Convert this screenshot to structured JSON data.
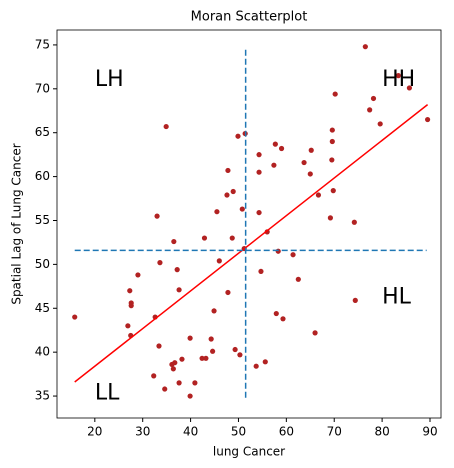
{
  "chart_data": {
    "type": "scatter",
    "title": "Moran Scatterplot",
    "x_label": "lung Cancer",
    "y_label": "Spatial Lag of Lung Cancer",
    "xlim": [
      12.1,
      92.3
    ],
    "ylim": [
      32.5,
      76.7
    ],
    "xticks": [
      20,
      30,
      40,
      50,
      60,
      70,
      80,
      90
    ],
    "yticks": [
      35,
      40,
      45,
      50,
      55,
      60,
      65,
      70,
      75
    ],
    "series": [
      {
        "style": "points",
        "color": "#b22222",
        "x": [
          15.8,
          34.9,
          76.5,
          70.2,
          78.2,
          77.4,
          83.4,
          85.7,
          79.6,
          89.5,
          69.6,
          69.6,
          49.9,
          51.4,
          57.7,
          59.0,
          54.3,
          65.2,
          63.7,
          69.5,
          47.8,
          54.3,
          65.0,
          57.4,
          48.9,
          47.6,
          69.8,
          66.7,
          45.5,
          50.8,
          54.3,
          69.2,
          74.2,
          33.0,
          48.7,
          42.9,
          56.0,
          36.5,
          33.6,
          46.0,
          51.2,
          58.3,
          61.4,
          62.5,
          54.7,
          37.2,
          29.0,
          27.3,
          37.6,
          47.8,
          74.4,
          27.6,
          27.6,
          44.9,
          57.9,
          59.3,
          32.6,
          26.9,
          66.0,
          27.5,
          39.9,
          44.3,
          33.4,
          49.3,
          50.3,
          44.6,
          38.2,
          42.4,
          43.2,
          36.7,
          36.1,
          55.6,
          53.7,
          36.4,
          32.3,
          37.6,
          40.9,
          34.6,
          39.9
        ],
        "values": [
          44.0,
          65.7,
          74.8,
          69.4,
          68.9,
          67.6,
          71.5,
          70.1,
          66.0,
          66.5,
          65.3,
          64.0,
          64.6,
          64.9,
          63.7,
          63.2,
          62.5,
          63.0,
          61.6,
          61.9,
          60.7,
          60.5,
          60.3,
          61.3,
          58.3,
          57.9,
          58.4,
          57.9,
          56.0,
          56.3,
          55.9,
          55.3,
          54.8,
          55.5,
          53.0,
          53.0,
          53.7,
          52.6,
          50.2,
          50.4,
          51.8,
          51.5,
          51.1,
          48.3,
          49.2,
          49.4,
          48.8,
          47.0,
          47.1,
          46.8,
          45.9,
          45.6,
          45.3,
          44.7,
          44.4,
          43.8,
          44.0,
          43.0,
          42.2,
          41.9,
          41.6,
          41.5,
          40.7,
          40.3,
          39.7,
          40.1,
          39.2,
          39.3,
          39.3,
          38.8,
          38.6,
          38.9,
          38.4,
          38.1,
          37.3,
          36.5,
          36.5,
          35.8,
          35.0
        ]
      },
      {
        "style": "line",
        "color": "#ff0000",
        "x": [
          15.8,
          89.5
        ],
        "values": [
          36.6,
          68.2
        ]
      },
      {
        "style": "dashed",
        "color": "#1f77b4",
        "x": [
          51.5,
          51.5
        ],
        "values": [
          34.8,
          74.5
        ]
      },
      {
        "style": "dashed",
        "color": "#1f77b4",
        "x": [
          15.8,
          89.3
        ],
        "values": [
          51.6,
          51.6
        ]
      }
    ],
    "annotations": [
      {
        "text": "LH",
        "x": 20,
        "y": 71.0
      },
      {
        "text": "HH",
        "x": 80,
        "y": 71.0
      },
      {
        "text": "LL",
        "x": 20,
        "y": 35.3
      },
      {
        "text": "HL",
        "x": 80,
        "y": 46.2
      }
    ],
    "annotation_color": "#ff0000"
  }
}
